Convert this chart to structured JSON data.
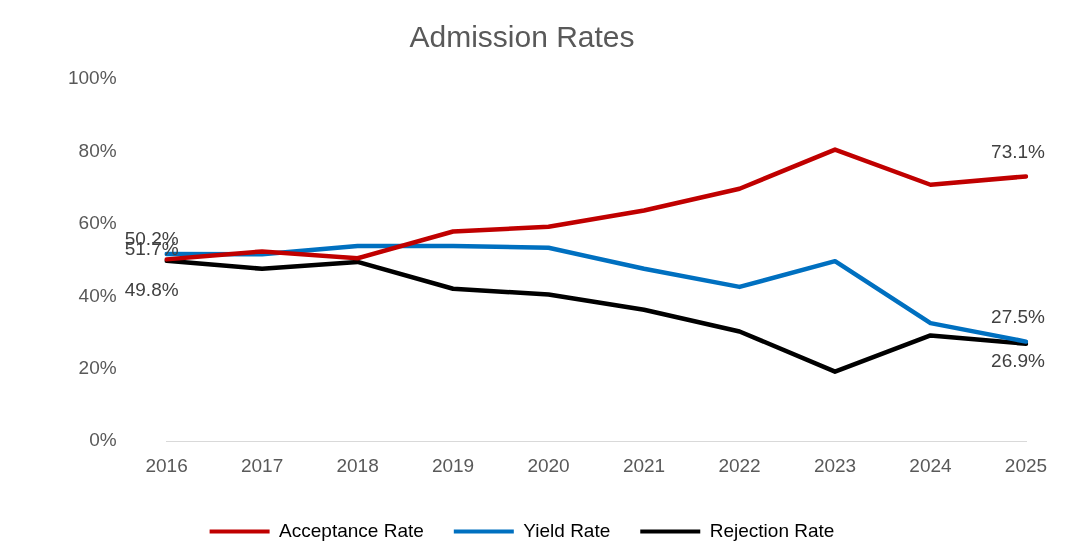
{
  "chart_data": {
    "type": "line",
    "title": "Admission Rates",
    "categories": [
      "2016",
      "2017",
      "2018",
      "2019",
      "2020",
      "2021",
      "2022",
      "2023",
      "2024",
      "2025"
    ],
    "series": [
      {
        "name": "Acceptance Rate",
        "color": "#c00000",
        "values": [
          50.2,
          52.4,
          50.5,
          57.9,
          59.2,
          63.7,
          69.7,
          80.5,
          70.8,
          73.1
        ],
        "value_labels": [
          "50.2%",
          null,
          null,
          null,
          null,
          null,
          null,
          null,
          null,
          "73.1%"
        ]
      },
      {
        "name": "Yield Rate",
        "color": "#0070c0",
        "values": [
          51.7,
          51.6,
          53.9,
          53.9,
          53.4,
          47.6,
          42.6,
          49.7,
          32.6,
          27.5
        ],
        "value_labels": [
          "51.7%",
          null,
          null,
          null,
          null,
          null,
          null,
          null,
          null,
          "27.5%"
        ]
      },
      {
        "name": "Rejection Rate",
        "color": "#000000",
        "values": [
          49.8,
          47.6,
          49.5,
          42.1,
          40.5,
          36.3,
          30.3,
          19.2,
          29.2,
          26.9
        ],
        "value_labels": [
          "49.8%",
          null,
          null,
          null,
          null,
          null,
          null,
          null,
          null,
          "26.9%"
        ]
      }
    ],
    "ylim": [
      0,
      100
    ],
    "yticks": [
      {
        "value": 0,
        "label": "0%"
      },
      {
        "value": 20,
        "label": "20%"
      },
      {
        "value": 40,
        "label": "40%"
      },
      {
        "value": 60,
        "label": "60%"
      },
      {
        "value": 80,
        "label": "80%"
      },
      {
        "value": 100,
        "label": "100%"
      }
    ],
    "grid": false,
    "legend": "bottom",
    "marker": "none",
    "line_style": "solid"
  }
}
